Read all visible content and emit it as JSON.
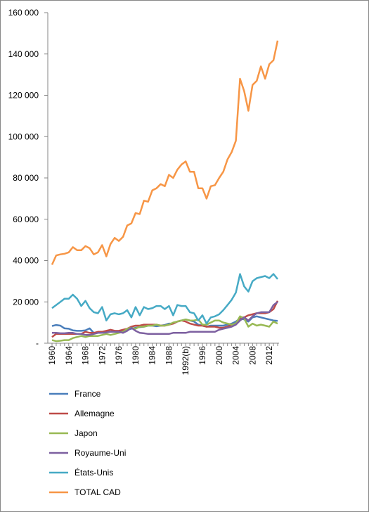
{
  "chart_data": {
    "type": "line",
    "categories": [
      "1960",
      null,
      null,
      null,
      "1964",
      null,
      null,
      null,
      "1968",
      null,
      null,
      null,
      "1972",
      null,
      null,
      null,
      "1976",
      null,
      null,
      null,
      "1980",
      null,
      null,
      null,
      "1984",
      null,
      null,
      null,
      "1988",
      null,
      null,
      null,
      "1992(b)",
      null,
      null,
      null,
      "1996",
      null,
      null,
      null,
      "2000",
      null,
      null,
      null,
      "2004",
      null,
      null,
      null,
      "2008",
      null,
      null,
      null,
      "2012",
      null,
      null
    ],
    "series": [
      {
        "name": "France",
        "color": "#4a7ebb",
        "values": [
          8300,
          8800,
          8500,
          7200,
          7000,
          6200,
          6000,
          6000,
          6200,
          7200,
          5000,
          5200,
          5500,
          5800,
          5500,
          5500,
          5800,
          6000,
          6500,
          7000,
          7500,
          7800,
          8000,
          8500,
          8500,
          8200,
          8500,
          8800,
          9500,
          9500,
          10500,
          11000,
          11500,
          11000,
          10500,
          9000,
          8500,
          8000,
          8500,
          8500,
          8500,
          8500,
          9000,
          9500,
          10500,
          12000,
          11500,
          10500,
          12500,
          13000,
          12500,
          12000,
          11500,
          11000,
          10800
        ]
      },
      {
        "name": "Allemagne",
        "color": "#be4b48",
        "values": [
          3000,
          4500,
          4500,
          4500,
          4500,
          4500,
          4500,
          4500,
          5500,
          5000,
          5000,
          5500,
          5500,
          6000,
          6500,
          6000,
          6000,
          6500,
          7000,
          8000,
          8500,
          8500,
          9000,
          9000,
          9000,
          9000,
          8500,
          8500,
          9000,
          9500,
          10500,
          11000,
          10500,
          9500,
          9000,
          8500,
          8500,
          8000,
          8000,
          8000,
          7500,
          7500,
          8000,
          9000,
          9500,
          12500,
          12500,
          13500,
          14000,
          14500,
          14500,
          14500,
          15000,
          16500,
          20500
        ]
      },
      {
        "name": "Japon",
        "color": "#98b954",
        "values": [
          1500,
          1000,
          1200,
          1500,
          1500,
          2500,
          3000,
          3500,
          3000,
          3500,
          3500,
          3500,
          4000,
          4500,
          4000,
          4500,
          5000,
          5500,
          7000,
          7500,
          7000,
          8000,
          8000,
          8500,
          8500,
          9000,
          8500,
          8500,
          9000,
          10000,
          10500,
          11000,
          11500,
          11000,
          11000,
          11500,
          9000,
          9000,
          10000,
          11000,
          11000,
          10000,
          9500,
          9000,
          9500,
          13000,
          12000,
          8000,
          9500,
          8500,
          9000,
          8500,
          8000,
          10500,
          9500
        ]
      },
      {
        "name": "Royaume-Uni",
        "color": "#7d60a0",
        "values": [
          5000,
          5000,
          4800,
          4800,
          5000,
          5000,
          4500,
          4500,
          4000,
          4000,
          4500,
          5000,
          5000,
          5200,
          5500,
          5500,
          5500,
          5000,
          6000,
          7500,
          6000,
          5000,
          4800,
          4500,
          4500,
          4500,
          4500,
          4500,
          4500,
          5000,
          5000,
          5000,
          5000,
          5500,
          5500,
          5500,
          5500,
          5500,
          5500,
          5500,
          6500,
          7000,
          7500,
          8000,
          9000,
          11000,
          12500,
          11000,
          13000,
          14500,
          15000,
          15000,
          15000,
          18500,
          20000
        ]
      },
      {
        "name": "États-Unis",
        "color": "#46aac5",
        "values": [
          17000,
          18500,
          20000,
          21500,
          21500,
          23500,
          21500,
          18000,
          20500,
          17000,
          15000,
          14500,
          17500,
          11000,
          14000,
          14500,
          14000,
          14500,
          16000,
          12500,
          17500,
          13500,
          17500,
          16500,
          17000,
          18000,
          18000,
          16500,
          18000,
          13500,
          18500,
          18000,
          18000,
          15000,
          14500,
          11000,
          13500,
          9500,
          12500,
          13000,
          14000,
          16000,
          18500,
          21000,
          24500,
          33500,
          27500,
          25000,
          30000,
          31500,
          32000,
          32500,
          31500,
          33500,
          31000
        ]
      },
      {
        "name": "TOTAL CAD",
        "color": "#f79646",
        "values": [
          38000,
          42500,
          43000,
          43300,
          44000,
          46500,
          45000,
          45000,
          47000,
          46000,
          43000,
          44000,
          47500,
          42000,
          48000,
          51000,
          49500,
          51500,
          57000,
          58000,
          63000,
          62500,
          69000,
          68500,
          74000,
          75000,
          77000,
          76000,
          81500,
          80000,
          84000,
          86500,
          88000,
          83000,
          83000,
          75000,
          75000,
          70000,
          76000,
          76500,
          80000,
          83000,
          89000,
          92500,
          98000,
          128000,
          122000,
          112500,
          125000,
          127000,
          134000,
          128000,
          135000,
          137000,
          146500
        ]
      }
    ],
    "ylim": [
      0,
      160000
    ],
    "yticks": [
      {
        "value": 0,
        "label": "-"
      },
      {
        "value": 20000,
        "label": "20 000"
      },
      {
        "value": 40000,
        "label": "40 000"
      },
      {
        "value": 60000,
        "label": "60 000"
      },
      {
        "value": 80000,
        "label": "80 000"
      },
      {
        "value": 100000,
        "label": "100 000"
      },
      {
        "value": 120000,
        "label": "120 000"
      },
      {
        "value": 140000,
        "label": "140 000"
      },
      {
        "value": 160000,
        "label": "160 000"
      }
    ],
    "grid": false,
    "legend": "bottom"
  }
}
